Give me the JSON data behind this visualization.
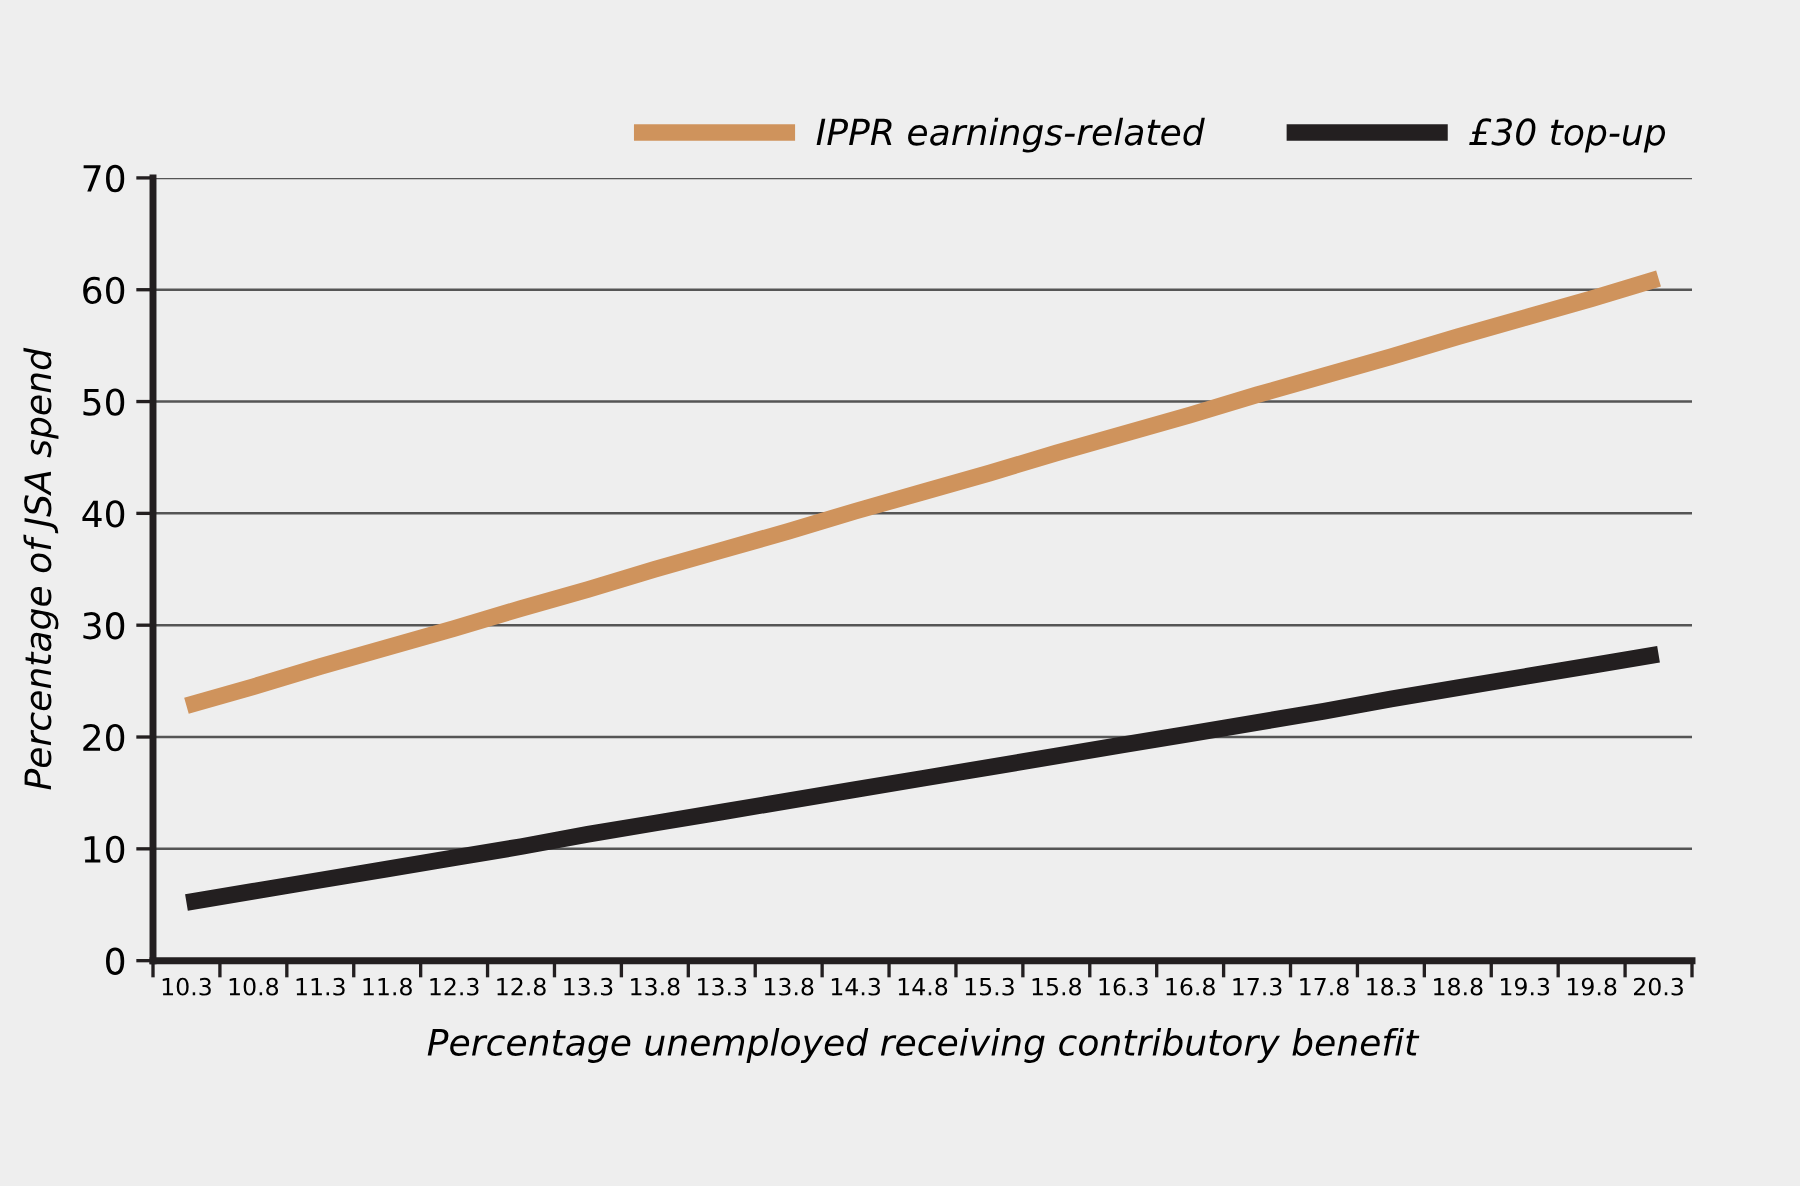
{
  "chart_data": {
    "type": "line",
    "xlabel": "Percentage unemployed receiving contributory benefit",
    "ylabel": "Percentage of JSA spend",
    "categories": [
      "10.3",
      "10.8",
      "11.3",
      "11.8",
      "12.3",
      "12.8",
      "13.3",
      "13.8",
      "13.3",
      "13.8",
      "14.3",
      "14.8",
      "15.3",
      "15.8",
      "16.3",
      "16.8",
      "17.3",
      "17.8",
      "18.3",
      "18.8",
      "19.3",
      "19.8",
      "20.3"
    ],
    "series": [
      {
        "name": "IPPR earnings-related",
        "color": "#cf935c",
        "values": [
          22.8,
          24.5,
          26.3,
          28,
          29.7,
          31.5,
          33.2,
          35,
          36.7,
          38.4,
          40.2,
          41.9,
          43.6,
          45.4,
          47.1,
          48.8,
          50.6,
          52.3,
          54,
          55.8,
          57.5,
          59.2,
          61
        ]
      },
      {
        "name": "£30 top-up",
        "color": "#231f20",
        "values": [
          5.2,
          6.2,
          7.2,
          8.2,
          9.2,
          10.2,
          11.3,
          12.3,
          13.3,
          14.3,
          15.3,
          16.3,
          17.3,
          18.3,
          19.3,
          20.3,
          21.3,
          22.3,
          23.4,
          24.4,
          25.4,
          26.4,
          27.4
        ]
      }
    ],
    "ylim": [
      0,
      70
    ],
    "yticks": [
      0,
      10,
      20,
      30,
      40,
      50,
      60,
      70
    ],
    "grid": "y",
    "legend": "top right",
    "marker": "none",
    "line_style": "solid"
  }
}
